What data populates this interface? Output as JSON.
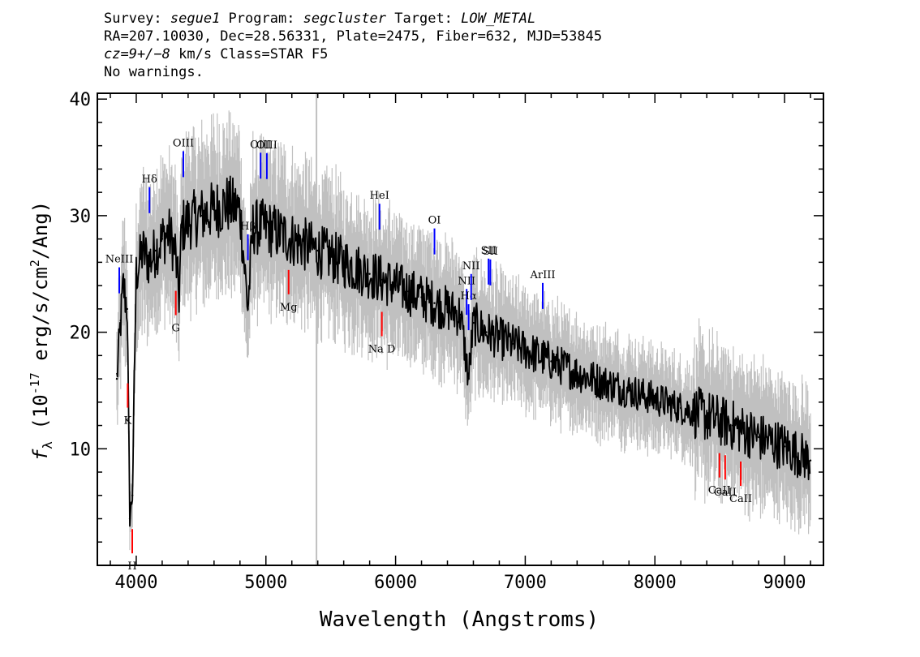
{
  "header": {
    "line1_prefix1": "Survey: ",
    "survey": "segue1",
    "line1_prefix2": " Program: ",
    "program": "segcluster",
    "line1_prefix3": " Target: ",
    "target": "LOW_METAL",
    "line2": "RA=207.10030, Dec=28.56331, Plate=2475, Fiber=632, MJD=53845",
    "line3_cz": "cz=9+/−8",
    "line3_rest": " km/s Class=STAR F5",
    "line4": "No warnings."
  },
  "colors": {
    "flux": "#000000",
    "error_band": "#c0c0c0",
    "emission": "#0000ff",
    "absorption": "#ff0000",
    "marker_line": "#c0c0c0"
  },
  "chart_data": {
    "type": "line",
    "xlabel": "Wavelength (Angstroms)",
    "ylabel": "fλ (10⁻¹⁷ erg/s/cm²/Ang)",
    "xlim": [
      3700,
      9300
    ],
    "ylim": [
      0,
      40.5
    ],
    "xticks": [
      4000,
      5000,
      6000,
      7000,
      8000,
      9000
    ],
    "yticks": [
      10,
      20,
      30,
      40
    ],
    "vertical_marker_x": 5390,
    "series": [
      {
        "role": "flux",
        "x": [
          3850,
          3880,
          3900,
          3930,
          3950,
          3970,
          4000,
          4050,
          4100,
          4150,
          4200,
          4250,
          4300,
          4330,
          4350,
          4400,
          4500,
          4600,
          4700,
          4800,
          4861,
          4900,
          5000,
          5100,
          5200,
          5300,
          5400,
          5500,
          5600,
          5700,
          5800,
          5900,
          6000,
          6100,
          6200,
          6300,
          6400,
          6500,
          6563,
          6600,
          6700,
          6800,
          6900,
          7000,
          7200,
          7400,
          7600,
          7800,
          8000,
          8200,
          8400,
          8600,
          8800,
          9000,
          9200
        ],
        "y": [
          16,
          21,
          24,
          22,
          4,
          6,
          25,
          27,
          26,
          27,
          28,
          28.5,
          27,
          23,
          29,
          29.5,
          30,
          30.5,
          31,
          30.5,
          22,
          29,
          29,
          28.5,
          28,
          27.5,
          27,
          26.5,
          26,
          25.5,
          25,
          24.5,
          24,
          23.5,
          23,
          22.5,
          22,
          21.5,
          16,
          20.8,
          20,
          19.5,
          19,
          18.5,
          17.5,
          16.5,
          15.7,
          15,
          14.3,
          13.5,
          12.8,
          12,
          11,
          10.2,
          9
        ]
      }
    ],
    "annotations": [
      {
        "label": "NeIII",
        "x": 3869,
        "type": "emission"
      },
      {
        "label": "Hδ",
        "x": 4102,
        "type": "emission"
      },
      {
        "label": "OIII",
        "x": 4363,
        "type": "emission"
      },
      {
        "label": "Hβ",
        "x": 4861,
        "type": "emission"
      },
      {
        "label": "OIII",
        "x": 4959,
        "type": "emission"
      },
      {
        "label": "OIII",
        "x": 5007,
        "type": "emission"
      },
      {
        "label": "HeI",
        "x": 5876,
        "type": "emission"
      },
      {
        "label": "OI",
        "x": 6300,
        "type": "emission"
      },
      {
        "label": "NII",
        "x": 6548,
        "type": "emission"
      },
      {
        "label": "Hα",
        "x": 6563,
        "type": "emission"
      },
      {
        "label": "NII",
        "x": 6583,
        "type": "emission"
      },
      {
        "label": "SII",
        "x": 6717,
        "type": "emission"
      },
      {
        "label": "SII",
        "x": 6731,
        "type": "emission"
      },
      {
        "label": "ArIII",
        "x": 7135,
        "type": "emission"
      },
      {
        "label": "K",
        "x": 3934,
        "type": "absorption"
      },
      {
        "label": "H",
        "x": 3969,
        "type": "absorption"
      },
      {
        "label": "G",
        "x": 4305,
        "type": "absorption"
      },
      {
        "label": "Mg",
        "x": 5175,
        "type": "absorption"
      },
      {
        "label": "Na D",
        "x": 5894,
        "type": "absorption"
      },
      {
        "label": "CaII",
        "x": 8498,
        "type": "absorption"
      },
      {
        "label": "CaII",
        "x": 8542,
        "type": "absorption"
      },
      {
        "label": "CaII",
        "x": 8662,
        "type": "absorption"
      }
    ]
  }
}
